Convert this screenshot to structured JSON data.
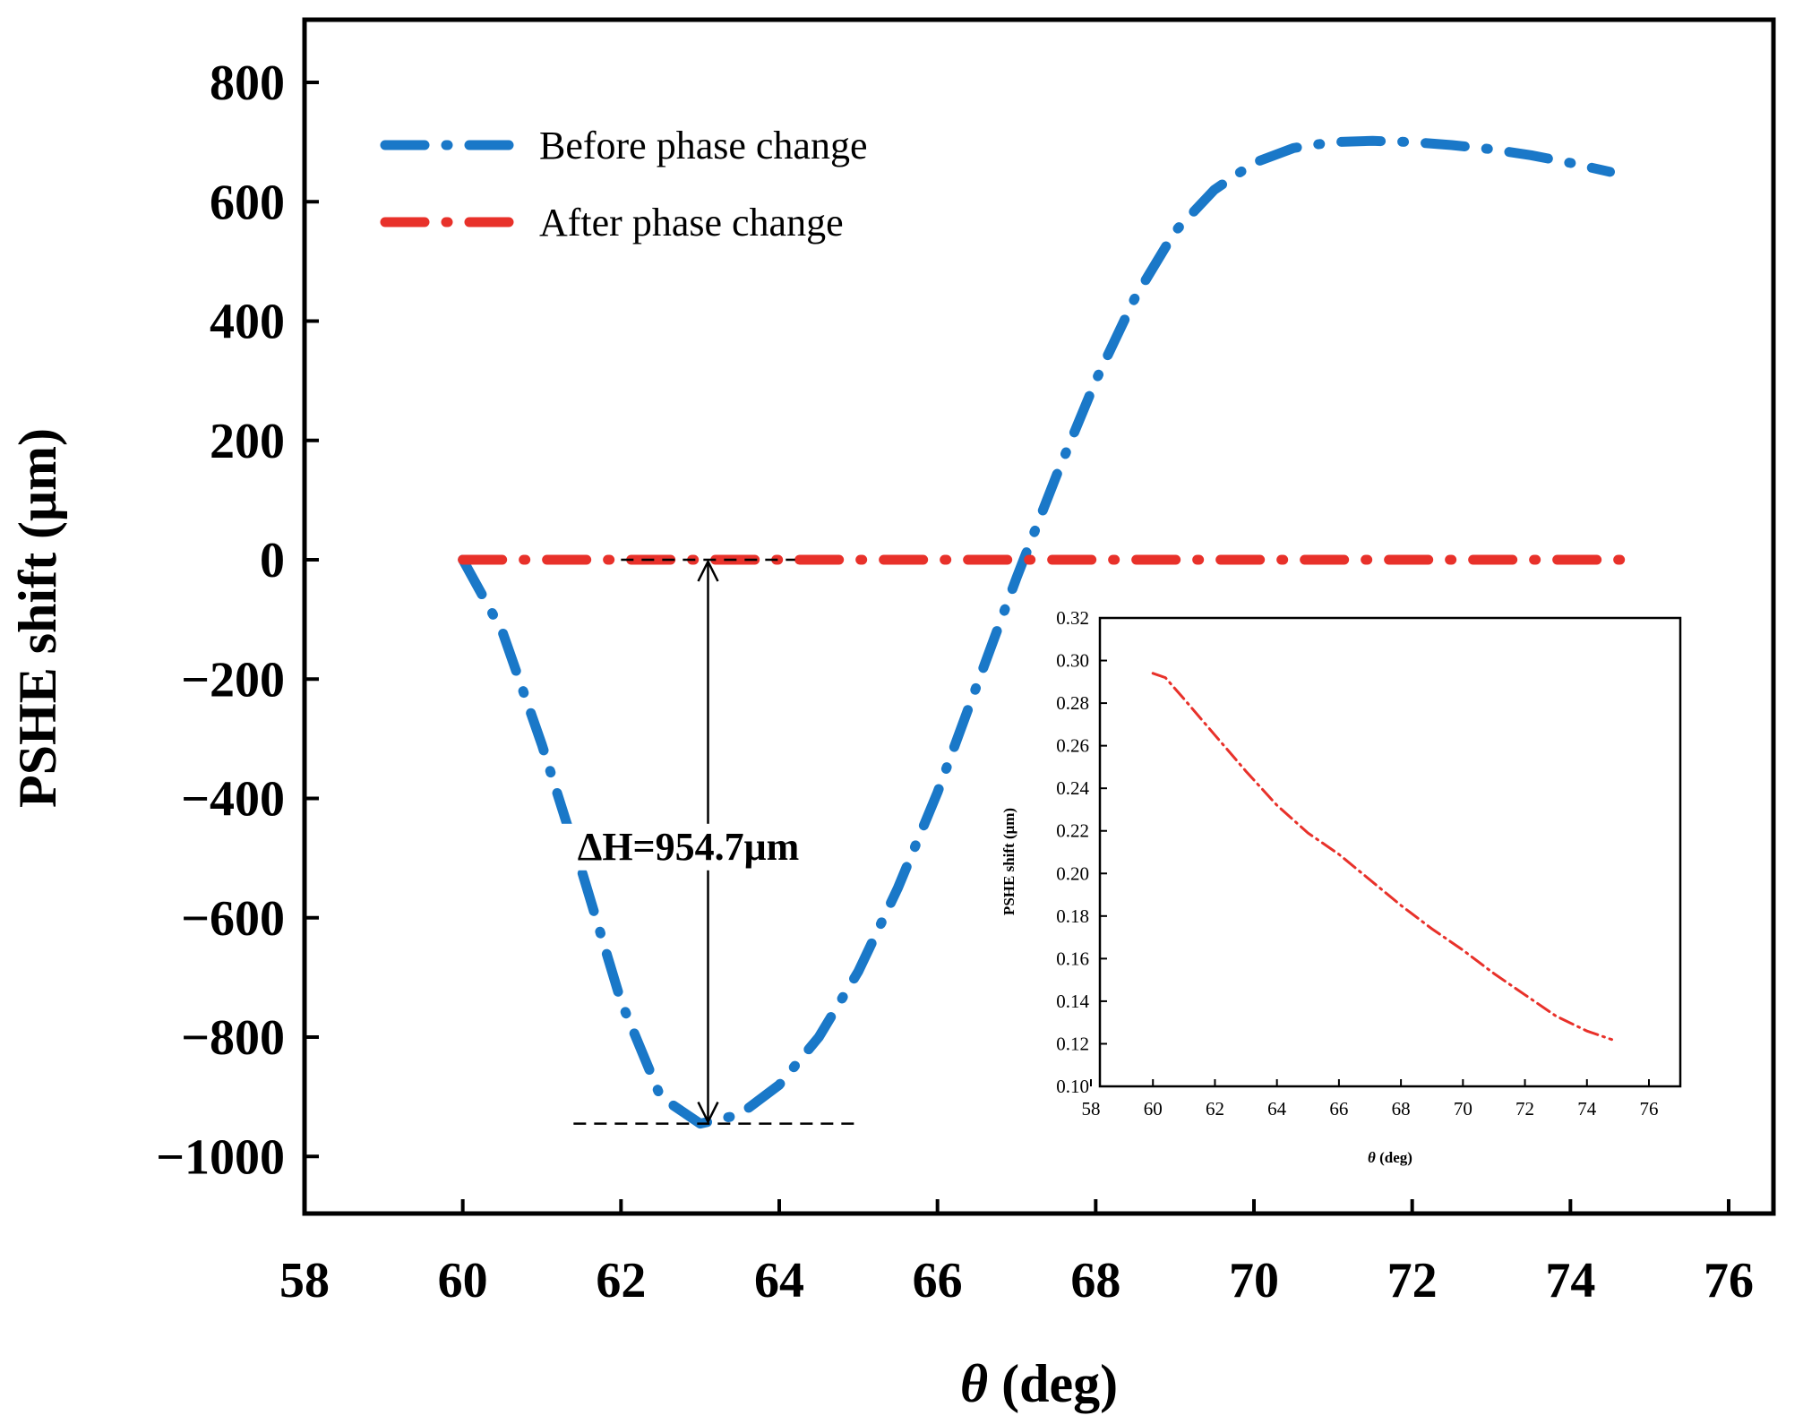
{
  "colors": {
    "before": "#1a78c8",
    "after": "#e8312a",
    "axis": "#000000"
  },
  "chart_data": [
    {
      "id": "main",
      "type": "line",
      "xlabel_symbol": "θ",
      "xlabel_unit": " (deg)",
      "ylabel": "PSHE shift (μm)",
      "xlim": [
        58,
        76
      ],
      "ylim": [
        -1100,
        900
      ],
      "xticks": [
        58,
        60,
        62,
        64,
        66,
        68,
        70,
        72,
        74,
        76
      ],
      "yticks": [
        800,
        600,
        400,
        200,
        0,
        -200,
        -400,
        -600,
        -800,
        -1000
      ],
      "ytick_labels": [
        "800",
        "600",
        "400",
        "200",
        "0",
        "−200",
        "−400",
        "−600",
        "−800",
        "−1000"
      ],
      "legend_position": "top-left",
      "series": [
        {
          "name": "Before phase change",
          "x": [
            60,
            60.5,
            61,
            61.5,
            62,
            62.5,
            63,
            63.5,
            64,
            64.5,
            65,
            65.5,
            66,
            66.5,
            67,
            67.5,
            68,
            68.5,
            69,
            69.5,
            70,
            70.5,
            71,
            71.5,
            72,
            72.5,
            73,
            73.5,
            74,
            74.5
          ],
          "y": [
            0,
            -120,
            -310,
            -520,
            -740,
            -900,
            -945,
            -930,
            -880,
            -800,
            -690,
            -550,
            -390,
            -210,
            -30,
            140,
            300,
            440,
            550,
            620,
            665,
            690,
            700,
            702,
            700,
            695,
            688,
            678,
            665,
            650
          ]
        },
        {
          "name": "After phase change",
          "x": [
            60,
            74.75
          ],
          "y": [
            0,
            0
          ]
        }
      ],
      "annotation": {
        "label": "ΔH=954.7μm",
        "arrow_x": 63.1,
        "top_y": 0,
        "bottom_y": -945,
        "top_ref_x": [
          62,
          64.2
        ],
        "bottom_ref_x": [
          61.4,
          65
        ]
      }
    },
    {
      "id": "inset",
      "type": "line",
      "xlabel_symbol": "θ",
      "xlabel_unit": " (deg)",
      "ylabel": "PSHE shift (μm)",
      "xlim": [
        58,
        77
      ],
      "ylim": [
        0.1,
        0.32
      ],
      "xticks": [
        58,
        60,
        62,
        64,
        66,
        68,
        70,
        72,
        74,
        76
      ],
      "yticks": [
        0.1,
        0.12,
        0.14,
        0.16,
        0.18,
        0.2,
        0.22,
        0.24,
        0.26,
        0.28,
        0.3,
        0.32
      ],
      "ytick_labels": [
        "0.10",
        "0.12",
        "0.14",
        "0.16",
        "0.18",
        "0.20",
        "0.22",
        "0.24",
        "0.26",
        "0.28",
        "0.30",
        "0.32"
      ],
      "series": [
        {
          "name": "After phase change",
          "x": [
            60,
            60.4,
            61,
            62,
            63,
            64,
            65,
            66,
            67,
            68,
            69,
            70,
            71,
            72,
            73,
            74,
            74.8
          ],
          "y": [
            0.294,
            0.292,
            0.282,
            0.265,
            0.248,
            0.232,
            0.219,
            0.209,
            0.197,
            0.185,
            0.174,
            0.164,
            0.153,
            0.143,
            0.133,
            0.126,
            0.122
          ]
        }
      ]
    }
  ]
}
